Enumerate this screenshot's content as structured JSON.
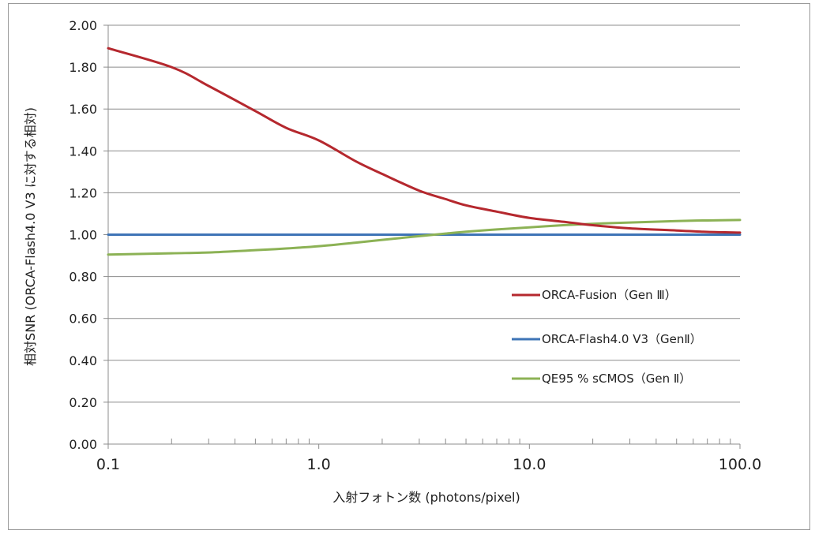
{
  "chart_data": {
    "type": "line",
    "title": "",
    "xlabel": "入射フォトン数 (photons/pixel)",
    "ylabel": "相対SNR (ORCA-Flash4.0 V3 に対する相対)",
    "x_scale": "log",
    "xlim": [
      0.1,
      100.0
    ],
    "ylim": [
      0.0,
      2.0
    ],
    "x_ticks": [
      0.1,
      1.0,
      10.0,
      100.0
    ],
    "x_tick_labels": [
      "0.1",
      "1.0",
      "10.0",
      "100.0"
    ],
    "y_ticks": [
      0.0,
      0.2,
      0.4,
      0.6,
      0.8,
      1.0,
      1.2,
      1.4,
      1.6,
      1.8,
      2.0
    ],
    "y_tick_labels": [
      "0.00",
      "0.20",
      "0.40",
      "0.60",
      "0.80",
      "1.00",
      "1.20",
      "1.40",
      "1.60",
      "1.80",
      "2.00"
    ],
    "grid": "horizontal",
    "legend_position": "right-center",
    "x": [
      0.1,
      0.2,
      0.3,
      0.5,
      0.7,
      1.0,
      1.5,
      2.0,
      3.0,
      4.0,
      5.0,
      7.0,
      10.0,
      15.0,
      20.0,
      30.0,
      50.0,
      70.0,
      100.0
    ],
    "series": [
      {
        "name": "ORCA-Fusion（Gen Ⅲ）",
        "color": "#b5282e",
        "values": [
          1.89,
          1.8,
          1.71,
          1.59,
          1.51,
          1.45,
          1.35,
          1.29,
          1.21,
          1.17,
          1.14,
          1.11,
          1.08,
          1.06,
          1.045,
          1.03,
          1.02,
          1.013,
          1.01
        ]
      },
      {
        "name": "ORCA-Flash4.0 V3（GenⅡ）",
        "color": "#3e74b6",
        "values": [
          1.0,
          1.0,
          1.0,
          1.0,
          1.0,
          1.0,
          1.0,
          1.0,
          1.0,
          1.0,
          1.0,
          1.0,
          1.0,
          1.0,
          1.0,
          1.0,
          1.0,
          1.0,
          1.0
        ]
      },
      {
        "name": "QE95 % sCMOS（Gen Ⅱ）",
        "color": "#8cb255",
        "values": [
          0.905,
          0.911,
          0.915,
          0.926,
          0.934,
          0.945,
          0.962,
          0.975,
          0.993,
          1.005,
          1.014,
          1.025,
          1.035,
          1.046,
          1.052,
          1.058,
          1.065,
          1.068,
          1.07
        ]
      }
    ]
  }
}
